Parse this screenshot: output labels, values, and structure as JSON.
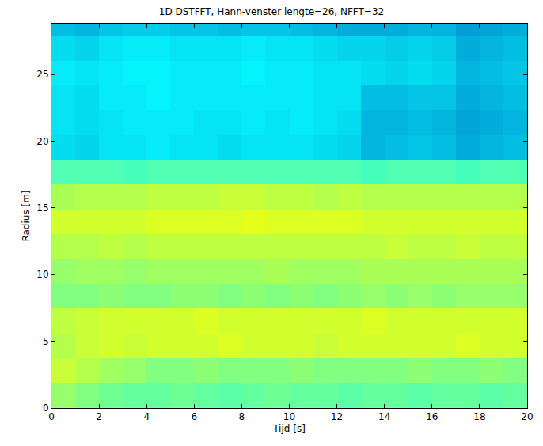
{
  "chart_data": {
    "type": "heatmap",
    "title": "1D DSTFFT, Hann-venster lengte=26, NFFT=32",
    "x_label": "Tijd [s]",
    "y_label": "Radius [m]",
    "x": [
      0,
      1,
      2,
      3,
      4,
      5,
      6,
      7,
      8,
      9,
      10,
      11,
      12,
      13,
      14,
      15,
      16,
      17,
      18,
      19,
      20
    ],
    "y": [
      0,
      1.86,
      3.72,
      5.58,
      7.44,
      9.3,
      11.16,
      13.02,
      14.88,
      16.74,
      18.6,
      20.46,
      22.32,
      24.18,
      26.04,
      27.9,
      29.76
    ],
    "z": [
      [
        0.52,
        0.5,
        0.48,
        0.47,
        0.47,
        0.48,
        0.47,
        0.46,
        0.47,
        0.48,
        0.47,
        0.47,
        0.46,
        0.47,
        0.47,
        0.46,
        0.47,
        0.47,
        0.46,
        0.47
      ],
      [
        0.57,
        0.55,
        0.53,
        0.52,
        0.5,
        0.5,
        0.51,
        0.5,
        0.5,
        0.5,
        0.51,
        0.5,
        0.5,
        0.5,
        0.5,
        0.51,
        0.5,
        0.5,
        0.51,
        0.5
      ],
      [
        0.55,
        0.57,
        0.58,
        0.57,
        0.58,
        0.58,
        0.58,
        0.59,
        0.58,
        0.58,
        0.58,
        0.57,
        0.58,
        0.58,
        0.58,
        0.58,
        0.58,
        0.59,
        0.58,
        0.58
      ],
      [
        0.56,
        0.57,
        0.58,
        0.58,
        0.58,
        0.58,
        0.59,
        0.58,
        0.58,
        0.58,
        0.58,
        0.58,
        0.58,
        0.59,
        0.58,
        0.58,
        0.58,
        0.58,
        0.58,
        0.58
      ],
      [
        0.5,
        0.5,
        0.51,
        0.5,
        0.5,
        0.51,
        0.51,
        0.5,
        0.51,
        0.5,
        0.51,
        0.5,
        0.51,
        0.52,
        0.51,
        0.52,
        0.51,
        0.52,
        0.52,
        0.52
      ],
      [
        0.52,
        0.53,
        0.53,
        0.52,
        0.53,
        0.53,
        0.53,
        0.53,
        0.53,
        0.54,
        0.53,
        0.53,
        0.53,
        0.54,
        0.54,
        0.54,
        0.54,
        0.54,
        0.54,
        0.54
      ],
      [
        0.55,
        0.55,
        0.56,
        0.55,
        0.56,
        0.56,
        0.56,
        0.56,
        0.56,
        0.56,
        0.56,
        0.56,
        0.56,
        0.56,
        0.57,
        0.56,
        0.56,
        0.57,
        0.56,
        0.56
      ],
      [
        0.58,
        0.58,
        0.58,
        0.58,
        0.59,
        0.59,
        0.59,
        0.59,
        0.6,
        0.59,
        0.59,
        0.59,
        0.59,
        0.58,
        0.58,
        0.58,
        0.58,
        0.58,
        0.58,
        0.58
      ],
      [
        0.54,
        0.55,
        0.55,
        0.55,
        0.56,
        0.56,
        0.56,
        0.57,
        0.57,
        0.56,
        0.56,
        0.55,
        0.56,
        0.55,
        0.55,
        0.55,
        0.55,
        0.55,
        0.55,
        0.55
      ],
      [
        0.45,
        0.45,
        0.45,
        0.44,
        0.45,
        0.45,
        0.45,
        0.45,
        0.45,
        0.45,
        0.45,
        0.45,
        0.45,
        0.44,
        0.45,
        0.45,
        0.45,
        0.44,
        0.45,
        0.45
      ],
      [
        0.33,
        0.32,
        0.34,
        0.34,
        0.35,
        0.34,
        0.34,
        0.33,
        0.34,
        0.34,
        0.34,
        0.33,
        0.32,
        0.28,
        0.29,
        0.3,
        0.29,
        0.27,
        0.28,
        0.29
      ],
      [
        0.34,
        0.33,
        0.34,
        0.35,
        0.35,
        0.35,
        0.34,
        0.34,
        0.35,
        0.34,
        0.35,
        0.34,
        0.33,
        0.28,
        0.28,
        0.29,
        0.28,
        0.26,
        0.27,
        0.28
      ],
      [
        0.34,
        0.33,
        0.35,
        0.35,
        0.36,
        0.35,
        0.35,
        0.35,
        0.35,
        0.35,
        0.35,
        0.34,
        0.34,
        0.29,
        0.29,
        0.3,
        0.3,
        0.27,
        0.28,
        0.29
      ],
      [
        0.35,
        0.34,
        0.35,
        0.36,
        0.36,
        0.35,
        0.35,
        0.35,
        0.36,
        0.35,
        0.35,
        0.34,
        0.34,
        0.33,
        0.32,
        0.33,
        0.32,
        0.28,
        0.29,
        0.3
      ],
      [
        0.33,
        0.32,
        0.34,
        0.35,
        0.35,
        0.34,
        0.34,
        0.34,
        0.35,
        0.34,
        0.34,
        0.33,
        0.32,
        0.32,
        0.31,
        0.32,
        0.31,
        0.27,
        0.28,
        0.29
      ],
      [
        0.29,
        0.28,
        0.3,
        0.31,
        0.31,
        0.3,
        0.3,
        0.29,
        0.3,
        0.3,
        0.29,
        0.28,
        0.27,
        0.27,
        0.27,
        0.28,
        0.28,
        0.25,
        0.26,
        0.27
      ]
    ],
    "zlim": [
      0,
      1
    ],
    "xlim": [
      0,
      20
    ],
    "xticks": [
      0,
      2,
      4,
      6,
      8,
      10,
      12,
      14,
      16,
      18,
      20
    ],
    "ylim": [
      0,
      28.8
    ],
    "yticks": [
      0,
      5,
      10,
      15,
      20,
      25
    ],
    "grid": false
  }
}
